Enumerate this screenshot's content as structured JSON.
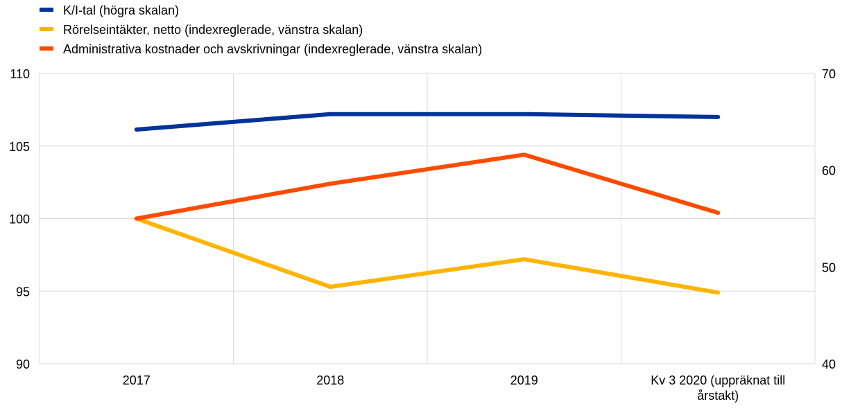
{
  "chart_data": {
    "type": "line",
    "categories": [
      "2017",
      "2018",
      "2019",
      "Kv 3 2020 (uppräknat till årstakt)"
    ],
    "category_lines": [
      [
        "2017"
      ],
      [
        "2018"
      ],
      [
        "2019"
      ],
      [
        "Kv 3 2020 (uppräknat till",
        "årstakt)"
      ]
    ],
    "y_left": {
      "lim": [
        90,
        110
      ],
      "ticks": [
        "90",
        "95",
        "100",
        "105",
        "110"
      ]
    },
    "y_right": {
      "lim": [
        40,
        70
      ],
      "ticks": [
        "40",
        "50",
        "60",
        "70"
      ]
    },
    "grid": true,
    "legend_position": "top-left",
    "series": [
      {
        "name": "K/I-tal (högra skalan)",
        "axis": "right",
        "color": "#003399",
        "values": [
          64.2,
          65.8,
          65.8,
          65.5
        ]
      },
      {
        "name": "Rörelseintäkter, netto (indexreglerade, vänstra skalan)",
        "axis": "left",
        "color": "#ffb400",
        "values": [
          100.0,
          95.3,
          97.2,
          94.9
        ]
      },
      {
        "name": "Administrativa kostnader och avskrivningar (indexreglerade, vänstra skalan)",
        "axis": "left",
        "color": "#ff4b00",
        "values": [
          100.0,
          102.4,
          104.4,
          100.4
        ]
      }
    ]
  }
}
